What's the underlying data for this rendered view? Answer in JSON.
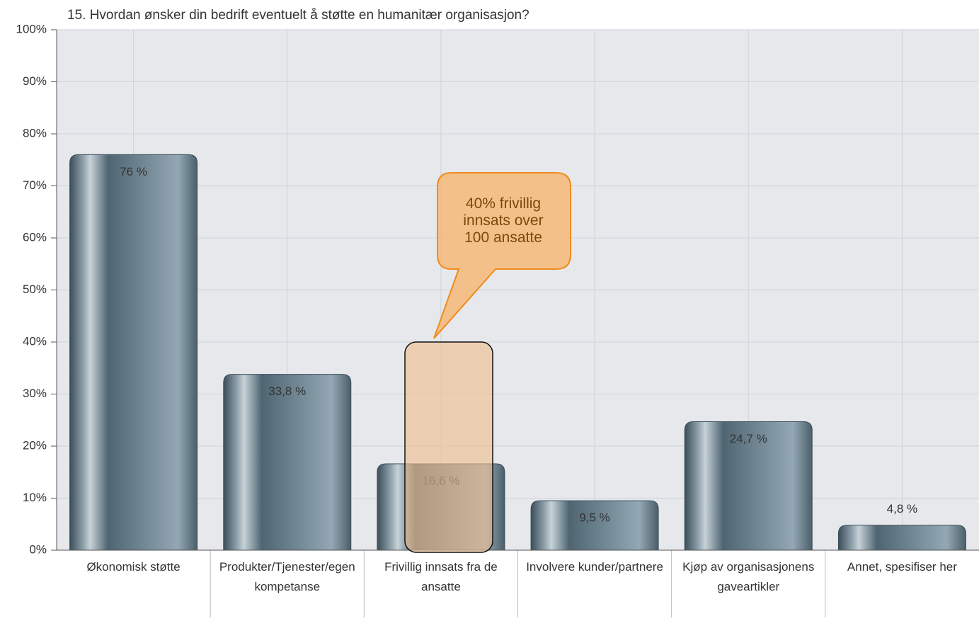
{
  "chart_data": {
    "type": "bar",
    "title": "15. Hvordan ønsker din bedrift eventuelt å støtte en humanitær organisasjon?",
    "categories": [
      "Økonomisk støtte",
      "Produkter/Tjenester/egen kompetanse",
      "Frivillig innsats fra de ansatte",
      "Involvere kunder/partnere",
      "Kjøp av organisasjonens gaveartikler",
      "Annet, spesifiser her"
    ],
    "values": [
      76,
      33.8,
      16.6,
      9.5,
      24.7,
      4.8
    ],
    "value_labels": [
      "76 %",
      "33,8 %",
      "16,6 %",
      "9,5 %",
      "24,7 %",
      "4,8 %"
    ],
    "color": "#5d7380",
    "ylim": [
      0,
      100
    ],
    "yticks": [
      {
        "value": 0,
        "label": "0%"
      },
      {
        "value": 10,
        "label": "10%"
      },
      {
        "value": 20,
        "label": "20%"
      },
      {
        "value": 30,
        "label": "30%"
      },
      {
        "value": 40,
        "label": "40%"
      },
      {
        "value": 50,
        "label": "50%"
      },
      {
        "value": 60,
        "label": "60%"
      },
      {
        "value": 70,
        "label": "70%"
      },
      {
        "value": 80,
        "label": "80%"
      },
      {
        "value": 90,
        "label": "90%"
      },
      {
        "value": 100,
        "label": "100%"
      }
    ],
    "grid": true,
    "annotation": "40% frivillig innsats over 100 ansatte"
  }
}
